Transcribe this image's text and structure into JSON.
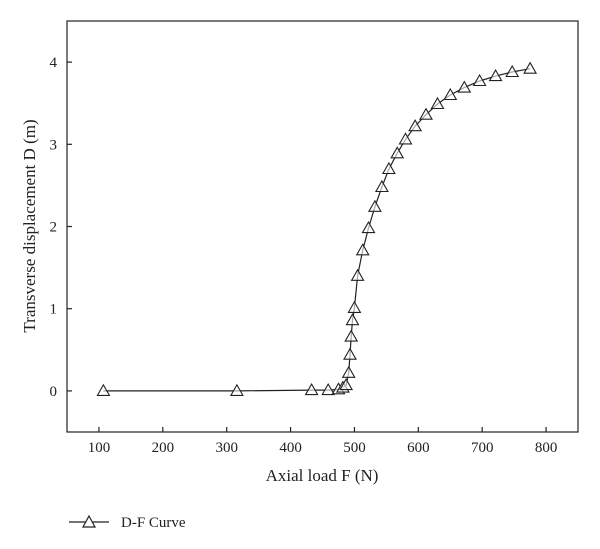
{
  "chart_data": {
    "type": "line",
    "xlabel": "Axial load F (N)",
    "ylabel": "Transverse displacement D (m)",
    "xlim": [
      50,
      850
    ],
    "ylim": [
      -0.5,
      4.5
    ],
    "xticks": [
      100,
      200,
      300,
      400,
      500,
      600,
      700,
      800
    ],
    "yticks": [
      0,
      1,
      2,
      3,
      4
    ],
    "grid": false,
    "legend_position": "bottom-left",
    "series": [
      {
        "name": "D-F Curve",
        "marker": "triangle",
        "color": "#222222",
        "points": [
          [
            107,
            0.0
          ],
          [
            316,
            0.0
          ],
          [
            433,
            0.01
          ],
          [
            459,
            0.01
          ],
          [
            475,
            0.02
          ],
          [
            482,
            0.04
          ],
          [
            487,
            0.07
          ],
          [
            491,
            0.22
          ],
          [
            493,
            0.44
          ],
          [
            495,
            0.66
          ],
          [
            497,
            0.86
          ],
          [
            500,
            1.01
          ],
          [
            505,
            1.4
          ],
          [
            513,
            1.71
          ],
          [
            522,
            1.98
          ],
          [
            532,
            2.24
          ],
          [
            543,
            2.48
          ],
          [
            554,
            2.7
          ],
          [
            567,
            2.89
          ],
          [
            580,
            3.06
          ],
          [
            595,
            3.22
          ],
          [
            612,
            3.36
          ],
          [
            630,
            3.49
          ],
          [
            650,
            3.6
          ],
          [
            672,
            3.69
          ],
          [
            696,
            3.77
          ],
          [
            721,
            3.83
          ],
          [
            747,
            3.88
          ],
          [
            775,
            3.92
          ]
        ]
      }
    ]
  }
}
